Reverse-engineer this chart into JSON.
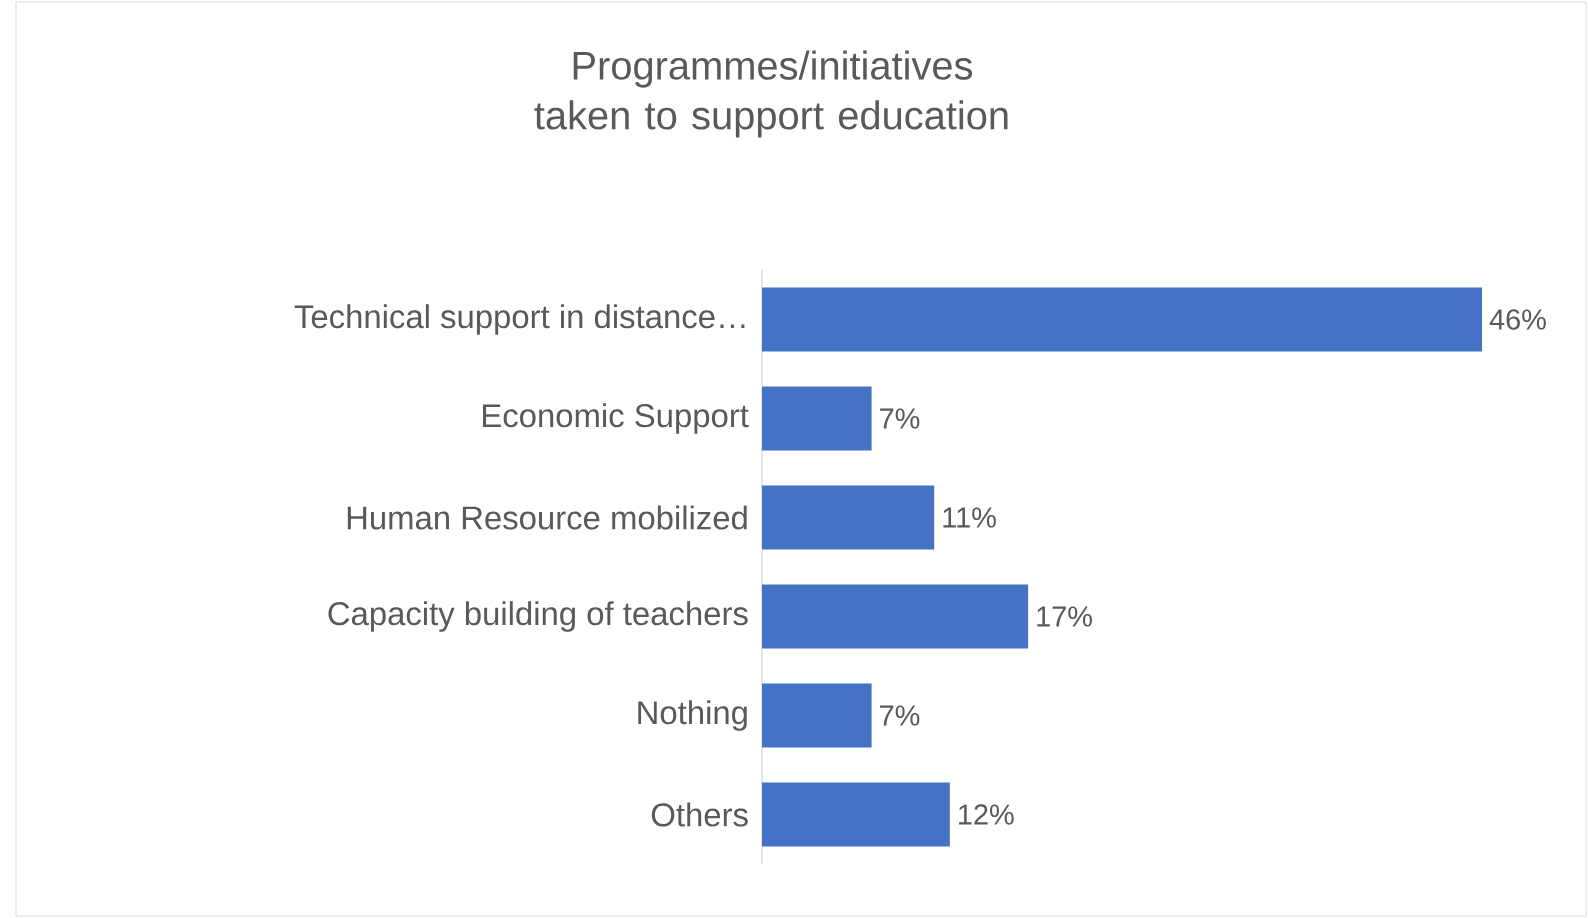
{
  "chart_data": {
    "type": "bar",
    "orientation": "horizontal",
    "title": "Programmes/initiatives taken to support education",
    "categories": [
      "Technical support in distance…",
      "Economic Support",
      "Human Resource mobilized",
      "Capacity building of teachers",
      "Nothing",
      "Others"
    ],
    "values": [
      46,
      7,
      11,
      17,
      7,
      12
    ],
    "value_labels": [
      "46%",
      "7%",
      "11%",
      "17%",
      "7%",
      "12%"
    ],
    "color": "#4472c4"
  }
}
